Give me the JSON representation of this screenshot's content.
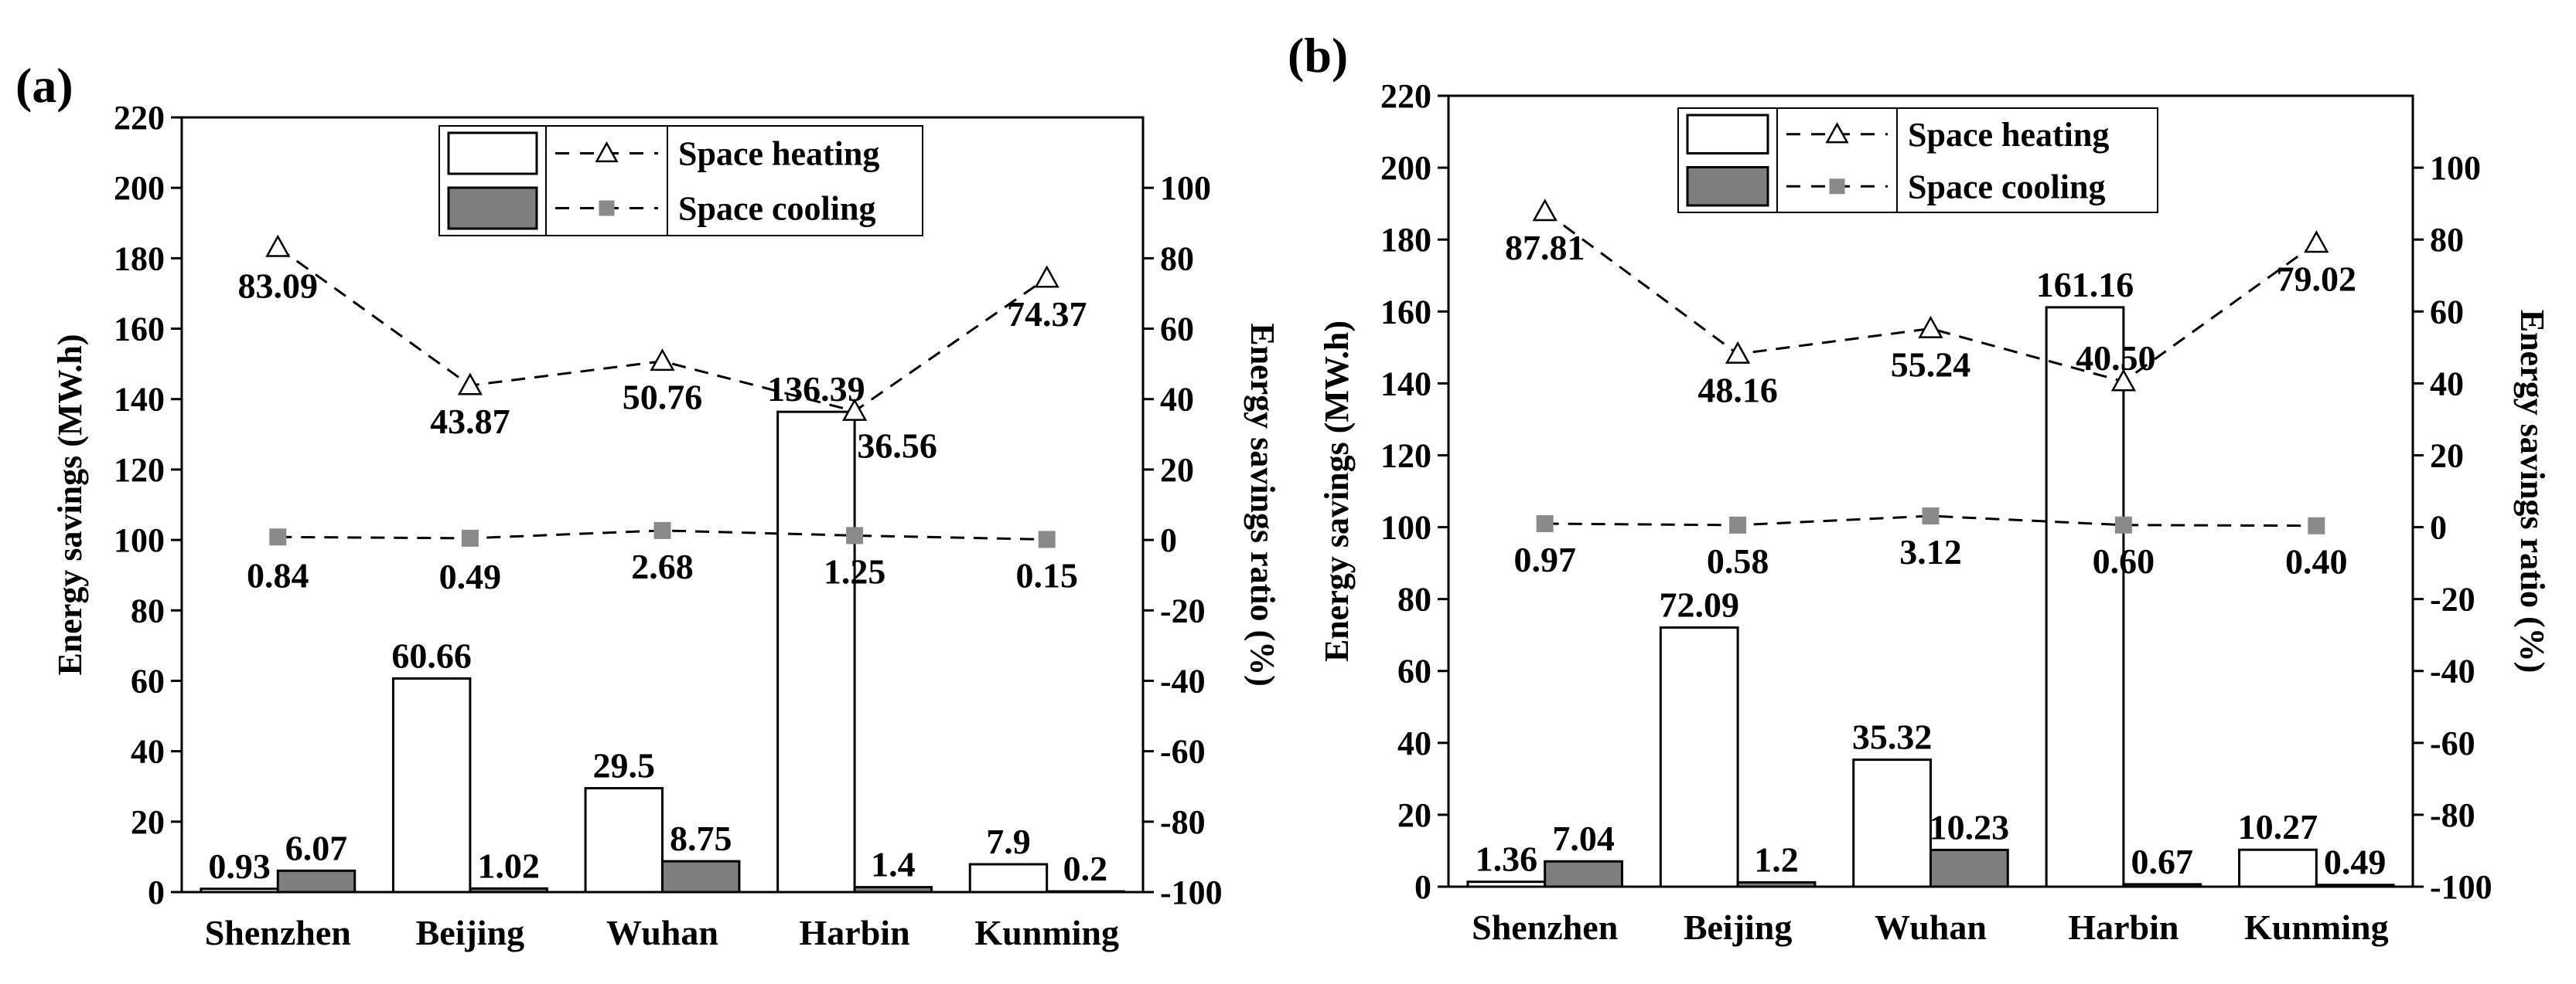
{
  "chart_data": [
    {
      "type": "bar+line",
      "panel_label": "(a)",
      "categories": [
        "Shenzhen",
        "Beijing",
        "Wuhan",
        "Harbin",
        "Kunming"
      ],
      "series": [
        {
          "name": "Space heating",
          "kind": "bar",
          "axis": "left",
          "values": [
            0.93,
            60.66,
            29.5,
            136.39,
            7.9
          ],
          "labels": [
            "0.93",
            "60.66",
            "29.5",
            "136.39",
            "7.9"
          ]
        },
        {
          "name": "Space cooling",
          "kind": "bar",
          "axis": "left",
          "values": [
            6.07,
            1.02,
            8.75,
            1.4,
            0.2
          ],
          "labels": [
            "6.07",
            "1.02",
            "8.75",
            "1.4",
            "0.2"
          ]
        },
        {
          "name": "Space heating",
          "kind": "line",
          "axis": "right",
          "marker": "triangle",
          "values": [
            83.09,
            43.87,
            50.76,
            36.56,
            74.37
          ],
          "labels": [
            "83.09",
            "43.87",
            "50.76",
            "36.56",
            "74.37"
          ]
        },
        {
          "name": "Space cooling",
          "kind": "line",
          "axis": "right",
          "marker": "square",
          "values": [
            0.84,
            0.49,
            2.68,
            1.25,
            0.15
          ],
          "labels": [
            "0.84",
            "0.49",
            "2.68",
            "1.25",
            "0.15"
          ]
        }
      ],
      "ylabel": "Energy savings (MW.h)",
      "y2label": "Energy savings ratio (%)",
      "ylim": [
        0,
        220
      ],
      "y2lim": [
        -100,
        120
      ],
      "yticks": [
        0,
        20,
        40,
        60,
        80,
        100,
        120,
        140,
        160,
        180,
        200,
        220
      ],
      "y2ticks": [
        -100,
        -80,
        -60,
        -40,
        -20,
        0,
        20,
        40,
        60,
        80,
        100
      ],
      "legend": [
        "Space heating",
        "Space cooling"
      ],
      "legend_position": "top-center"
    },
    {
      "type": "bar+line",
      "panel_label": "(b)",
      "categories": [
        "Shenzhen",
        "Beijing",
        "Wuhan",
        "Harbin",
        "Kunming"
      ],
      "series": [
        {
          "name": "Space heating",
          "kind": "bar",
          "axis": "left",
          "values": [
            1.36,
            72.09,
            35.32,
            161.16,
            10.27
          ],
          "labels": [
            "1.36",
            "72.09",
            "35.32",
            "161.16",
            "10.27"
          ]
        },
        {
          "name": "Space cooling",
          "kind": "bar",
          "axis": "left",
          "values": [
            7.04,
            1.2,
            10.23,
            0.67,
            0.49
          ],
          "labels": [
            "7.04",
            "1.2",
            "10.23",
            "0.67",
            "0.49"
          ]
        },
        {
          "name": "Space heating",
          "kind": "line",
          "axis": "right",
          "marker": "triangle",
          "values": [
            87.81,
            48.16,
            55.24,
            40.5,
            79.02
          ],
          "labels": [
            "87.81",
            "48.16",
            "55.24",
            "40.50",
            "79.02"
          ]
        },
        {
          "name": "Space cooling",
          "kind": "line",
          "axis": "right",
          "marker": "square",
          "values": [
            0.97,
            0.58,
            3.12,
            0.6,
            0.4
          ],
          "labels": [
            "0.97",
            "0.58",
            "3.12",
            "0.60",
            "0.40"
          ]
        }
      ],
      "ylabel": "Energy savings (MW.h)",
      "y2label": "Energy savings ratio (%)",
      "ylim": [
        0,
        220
      ],
      "y2lim": [
        -100,
        120
      ],
      "yticks": [
        0,
        20,
        40,
        60,
        80,
        100,
        120,
        140,
        160,
        180,
        200,
        220
      ],
      "y2ticks": [
        -100,
        -80,
        -60,
        -40,
        -20,
        0,
        20,
        40,
        60,
        80,
        100
      ],
      "legend": [
        "Space heating",
        "Space cooling"
      ],
      "legend_position": "top-center"
    }
  ],
  "colors": {
    "heating_bar": "#ffffff",
    "cooling_bar": "#7f7f7f",
    "cooling_marker": "#8a8a8a",
    "axis": "#000000"
  }
}
